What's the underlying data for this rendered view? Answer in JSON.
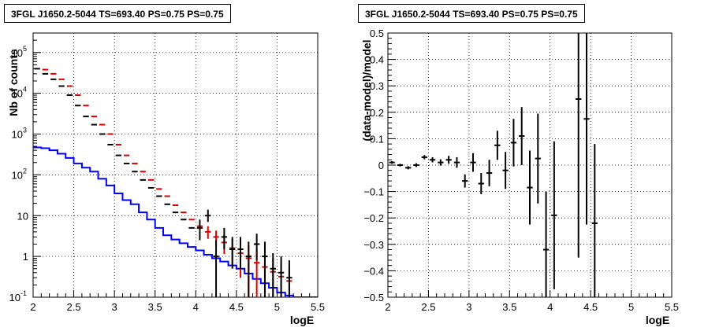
{
  "chart_data": [
    {
      "type": "line",
      "title": "3FGL J1650.2-5044 TS=693.40 PS=0.75 PS=0.75",
      "xlabel": "logE",
      "ylabel": "Nb of counts",
      "xlim": [
        2,
        5.5
      ],
      "ylim": [
        0.1,
        300000
      ],
      "y_scale": "log",
      "grid": true,
      "x_ticks": [
        "2",
        "2.5",
        "3",
        "3.5",
        "4",
        "4.5",
        "5",
        "5.5"
      ],
      "y_ticks": [
        {
          "v": 0.1,
          "label": "10",
          "exp": "-1"
        },
        {
          "v": 1,
          "label": "1",
          "exp": ""
        },
        {
          "v": 10,
          "label": "10",
          "exp": ""
        },
        {
          "v": 100,
          "label": "10",
          "exp": "2"
        },
        {
          "v": 1000,
          "label": "10",
          "exp": "3"
        },
        {
          "v": 10000,
          "label": "10",
          "exp": "4"
        },
        {
          "v": 100000,
          "label": "10",
          "exp": "5"
        }
      ],
      "bin_width": 0.1,
      "series": [
        {
          "color": "#0000ff",
          "kind": "step",
          "x": [
            2.05,
            2.15,
            2.25,
            2.35,
            2.45,
            2.55,
            2.65,
            2.75,
            2.85,
            2.95,
            3.05,
            3.15,
            3.25,
            3.35,
            3.45,
            3.55,
            3.65,
            3.75,
            3.85,
            3.95,
            4.05,
            4.15,
            4.25,
            4.35,
            4.45,
            4.55,
            4.65,
            4.75,
            4.85,
            4.95,
            5.05,
            5.15,
            5.25,
            5.35,
            5.45
          ],
          "y": [
            470,
            450,
            400,
            330,
            260,
            190,
            150,
            120,
            80,
            55,
            35,
            24,
            19,
            12,
            8,
            5,
            3.3,
            2.6,
            2.1,
            1.7,
            1.4,
            1.1,
            0.9,
            0.75,
            0.6,
            0.5,
            0.38,
            0.28,
            0.22,
            0.17,
            0.13,
            0.11,
            0.1,
            0.1,
            0.1
          ]
        },
        {
          "color": "#dd0000",
          "kind": "points",
          "x": [
            2.15,
            2.25,
            2.35,
            2.45,
            2.55,
            2.65,
            2.75,
            2.85,
            2.95,
            3.05,
            3.15,
            3.25,
            3.35,
            3.45,
            3.55,
            3.65,
            3.75,
            3.85,
            3.95,
            4.05,
            4.15,
            4.25,
            4.35,
            4.45,
            4.55,
            4.65,
            4.75,
            4.85,
            4.95,
            5.05,
            5.15
          ],
          "y": [
            38000,
            30000,
            22000,
            15000,
            9000,
            5000,
            2700,
            1700,
            1000,
            550,
            300,
            190,
            120,
            75,
            45,
            30,
            18,
            12,
            8,
            5.5,
            4,
            3,
            2.2,
            1.6,
            1.2,
            0.9,
            0.7,
            0.55,
            0.42,
            0.32,
            0.25
          ],
          "err_lo": [
            0,
            0,
            0,
            0,
            0,
            0,
            0,
            0,
            0,
            0,
            0,
            0,
            0,
            0,
            0,
            0,
            0,
            0,
            0,
            0,
            1.3,
            1.2,
            1.05,
            1.0,
            0.9,
            0.8,
            0.65,
            0.5,
            0.4,
            0.3,
            0.24
          ],
          "err_hi": [
            0,
            0,
            0,
            0,
            0,
            0,
            0,
            0,
            0,
            0,
            0,
            0,
            0,
            0,
            0,
            0,
            0,
            0,
            0,
            0,
            1.5,
            1.3,
            1.2,
            1.1,
            1.0,
            0.95,
            0.8,
            0.6,
            0.5,
            0.4,
            0.3
          ]
        },
        {
          "color": "#000000",
          "kind": "points",
          "x": [
            2.05,
            2.15,
            2.25,
            2.35,
            2.45,
            2.55,
            2.65,
            2.75,
            2.85,
            2.95,
            3.05,
            3.15,
            3.25,
            3.35,
            3.45,
            3.55,
            3.65,
            3.75,
            3.85,
            3.95,
            4.05,
            4.15,
            4.25,
            4.35,
            4.45,
            4.55,
            4.65,
            4.75,
            4.85,
            4.95,
            5.05,
            5.15
          ],
          "y": [
            40000,
            30000,
            22000,
            15000,
            9000,
            5000,
            2700,
            1700,
            1000,
            550,
            300,
            190,
            120,
            75,
            48,
            30,
            19,
            12,
            8,
            5,
            5,
            10,
            1,
            3,
            1.5,
            1.5,
            1,
            2,
            1,
            0.5,
            0.4,
            0.3
          ],
          "err_lo": [
            0,
            0,
            0,
            0,
            0,
            0,
            0,
            0,
            0,
            0,
            0,
            0,
            0,
            0,
            0,
            0,
            0,
            0,
            0,
            0,
            2.5,
            3,
            0.9,
            1.5,
            1,
            1,
            0.9,
            1.2,
            0.9,
            0.4,
            0.3,
            0.2
          ],
          "err_hi": [
            0,
            0,
            0,
            0,
            0,
            0,
            0,
            0,
            0,
            0,
            0,
            0,
            0,
            0,
            0,
            0,
            0,
            0,
            0,
            0,
            3,
            4,
            1.5,
            2,
            1.5,
            1.5,
            1.3,
            1.6,
            1.3,
            0.7,
            0.6,
            0.5
          ]
        }
      ]
    },
    {
      "type": "scatter",
      "title": "3FGL J1650.2-5044 TS=693.40 PS=0.75 PS=0.75",
      "xlabel": "logE",
      "ylabel": "(data-model)/model",
      "xlim": [
        2,
        5.5
      ],
      "ylim": [
        -0.5,
        0.5
      ],
      "grid": true,
      "x_ticks": [
        "2",
        "2.5",
        "3",
        "3.5",
        "4",
        "4.5",
        "5",
        "5.5"
      ],
      "y_ticks": [
        "−0.5",
        "−0.4",
        "−0.3",
        "−0.2",
        "−0.1",
        "0",
        "0.1",
        "0.2",
        "0.3",
        "0.4",
        "0.5"
      ],
      "bin_width": 0.1,
      "points": [
        {
          "x": 2.05,
          "y": 0.01,
          "e": 0.005
        },
        {
          "x": 2.15,
          "y": 0.0,
          "e": 0.005
        },
        {
          "x": 2.25,
          "y": -0.01,
          "e": 0.006
        },
        {
          "x": 2.35,
          "y": 0.0,
          "e": 0.007
        },
        {
          "x": 2.45,
          "y": 0.03,
          "e": 0.008
        },
        {
          "x": 2.55,
          "y": 0.02,
          "e": 0.01
        },
        {
          "x": 2.65,
          "y": 0.01,
          "e": 0.012
        },
        {
          "x": 2.75,
          "y": 0.02,
          "e": 0.015
        },
        {
          "x": 2.85,
          "y": 0.01,
          "e": 0.02
        },
        {
          "x": 2.95,
          "y": -0.06,
          "e": 0.025
        },
        {
          "x": 3.05,
          "y": 0.01,
          "e": 0.035
        },
        {
          "x": 3.15,
          "y": -0.07,
          "e": 0.04
        },
        {
          "x": 3.25,
          "y": -0.03,
          "e": 0.05
        },
        {
          "x": 3.35,
          "y": 0.075,
          "e": 0.055
        },
        {
          "x": 3.45,
          "y": -0.02,
          "e": 0.07
        },
        {
          "x": 3.55,
          "y": 0.085,
          "e": 0.09
        },
        {
          "x": 3.65,
          "y": 0.11,
          "e": 0.11
        },
        {
          "x": 3.75,
          "y": -0.085,
          "e": 0.14
        },
        {
          "x": 3.85,
          "y": 0.025,
          "e": 0.17
        },
        {
          "x": 3.95,
          "y": -0.32,
          "e": 0.22
        },
        {
          "x": 4.05,
          "y": -0.19,
          "e": 0.28
        },
        {
          "x": 4.35,
          "y": 0.25,
          "e": 0.6
        },
        {
          "x": 4.45,
          "y": 0.175,
          "e": 0.4
        },
        {
          "x": 4.55,
          "y": -0.22,
          "e": 0.3
        }
      ]
    }
  ]
}
